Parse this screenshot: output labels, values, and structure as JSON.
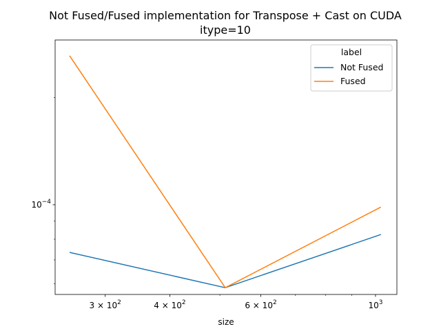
{
  "chart_data": {
    "type": "line",
    "title": "Not Fused/Fused implementation for Transpose + Cast on CUDA",
    "subtitle": "itype=10",
    "xlabel": "size",
    "ylabel": "",
    "xscale": "log",
    "yscale": "log",
    "xlim": [
      240,
      1100
    ],
    "ylim": [
      5.6e-05,
      0.00029
    ],
    "x": [
      256,
      512,
      1024
    ],
    "series": [
      {
        "name": "Not Fused",
        "color": "#1f77b4",
        "values": [
          7.35e-05,
          5.85e-05,
          8.25e-05
        ]
      },
      {
        "name": "Fused",
        "color": "#ff7f0e",
        "values": [
          0.000262,
          5.85e-05,
          9.85e-05
        ]
      }
    ],
    "x_ticks": [
      {
        "value": 300,
        "base": "3 × 10",
        "exp": "2"
      },
      {
        "value": 400,
        "base": "4 × 10",
        "exp": "2"
      },
      {
        "value": 600,
        "base": "6 × 10",
        "exp": "2"
      },
      {
        "value": 1000,
        "base": "10",
        "exp": "3"
      }
    ],
    "y_ticks": [
      {
        "value": 0.0001,
        "base": "10",
        "exp": "−4"
      }
    ],
    "legend": {
      "title": "label",
      "placement": "top-right"
    },
    "grid": false
  }
}
